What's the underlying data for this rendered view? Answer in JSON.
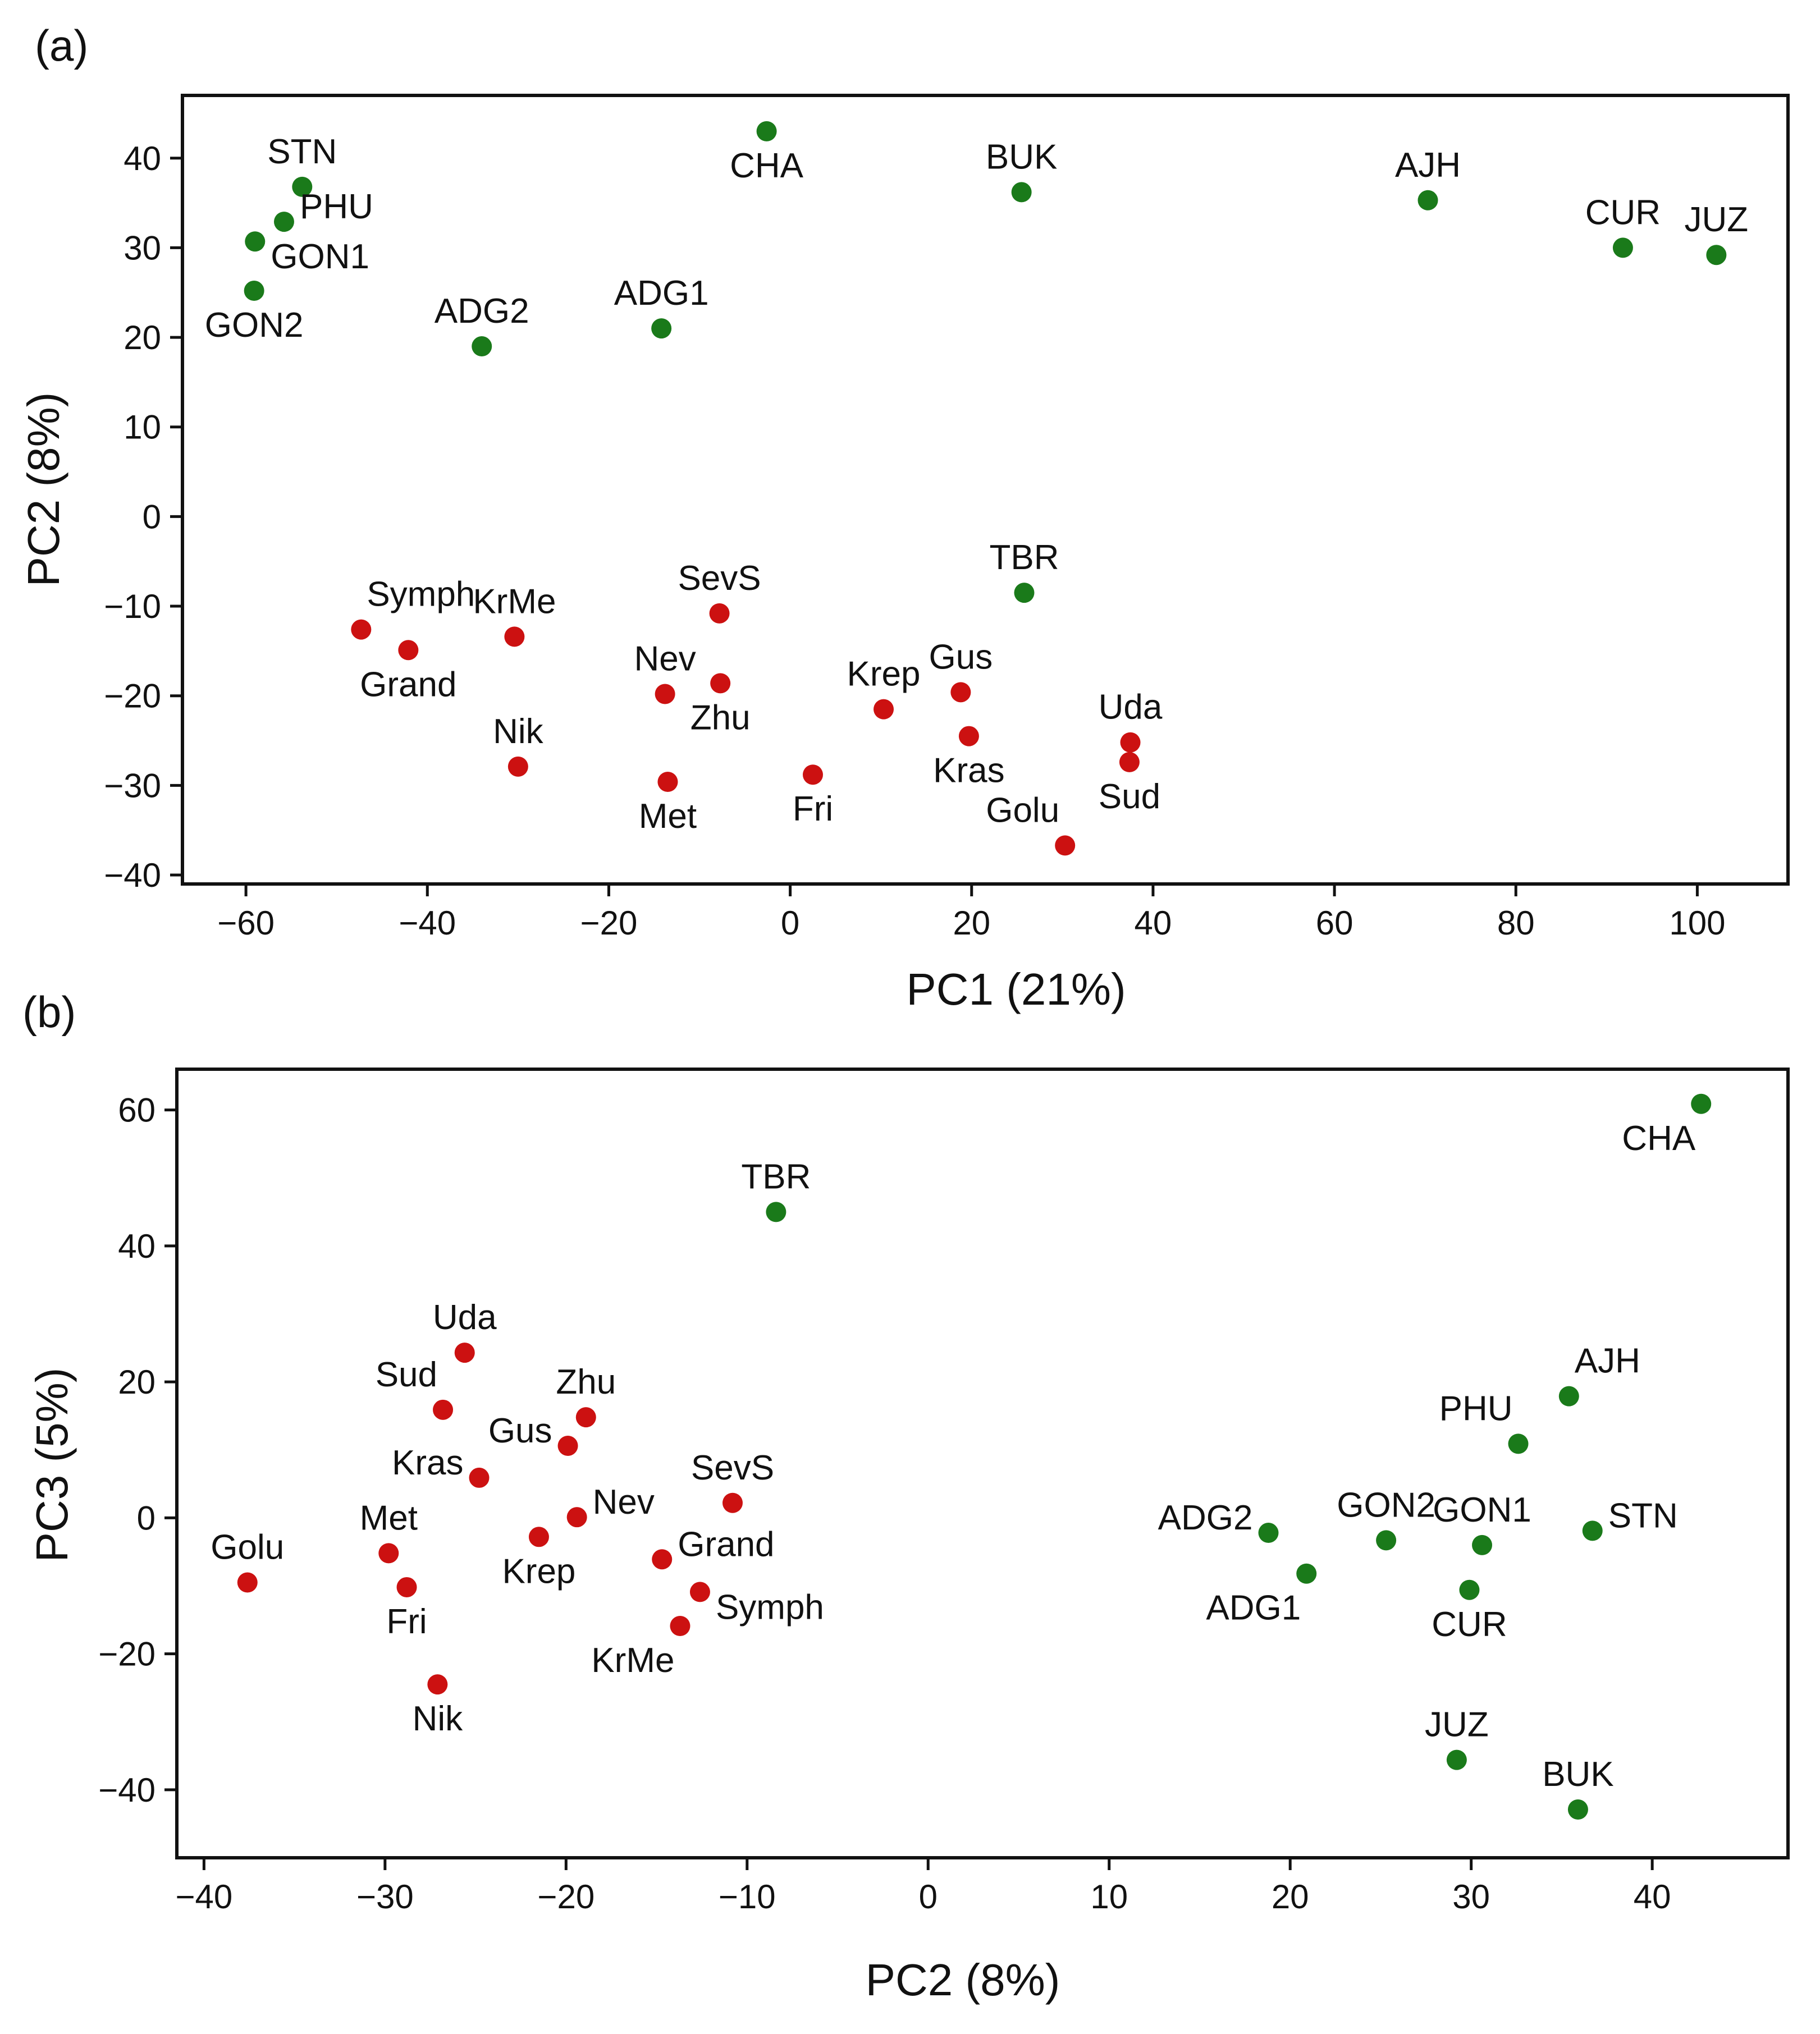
{
  "colors": {
    "group_red": "#cc1111",
    "group_green": "#1a7a1a"
  },
  "chart_data": [
    {
      "type": "scatter",
      "panel_label": "(a)",
      "xlabel": "PC1 (21%)",
      "ylabel": "PC2 (8%)",
      "xlim": [
        -67,
        110
      ],
      "ylim": [
        -41,
        47
      ],
      "xticks": [
        -60,
        -40,
        -20,
        0,
        20,
        40,
        60,
        80,
        100
      ],
      "xtick_labels": [
        "−60",
        "−40",
        "−20",
        "0",
        "20",
        "40",
        "60",
        "80",
        "100"
      ],
      "yticks": [
        -40,
        -30,
        -20,
        -10,
        0,
        10,
        20,
        30,
        40
      ],
      "ytick_labels": [
        "−40",
        "−30",
        "−20",
        "−10",
        "0",
        "10",
        "20",
        "30",
        "40"
      ],
      "grid": false,
      "series": [
        {
          "name": "red",
          "color": "#cc1111",
          "points": [
            {
              "label": "Symph",
              "x": -47.3,
              "y": -12.6,
              "anchor": "above-right"
            },
            {
              "label": "Grand",
              "x": -42.1,
              "y": -14.9,
              "anchor": "below"
            },
            {
              "label": "KrMe",
              "x": -30.4,
              "y": -13.4,
              "anchor": "above"
            },
            {
              "label": "Nik",
              "x": -30.0,
              "y": -27.9,
              "anchor": "above"
            },
            {
              "label": "SevS",
              "x": -7.8,
              "y": -10.8,
              "anchor": "above"
            },
            {
              "label": "Nev",
              "x": -13.8,
              "y": -19.8,
              "anchor": "above"
            },
            {
              "label": "Zhu",
              "x": -7.7,
              "y": -18.6,
              "anchor": "below"
            },
            {
              "label": "Met",
              "x": -13.5,
              "y": -29.6,
              "anchor": "below"
            },
            {
              "label": "Fri",
              "x": 2.5,
              "y": -28.8,
              "anchor": "below"
            },
            {
              "label": "Krep",
              "x": 10.3,
              "y": -21.5,
              "anchor": "above"
            },
            {
              "label": "Gus",
              "x": 18.8,
              "y": -19.6,
              "anchor": "above"
            },
            {
              "label": "Kras",
              "x": 19.7,
              "y": -24.5,
              "anchor": "below"
            },
            {
              "label": "Uda",
              "x": 37.5,
              "y": -25.2,
              "anchor": "above"
            },
            {
              "label": "Sud",
              "x": 37.4,
              "y": -27.4,
              "anchor": "below"
            },
            {
              "label": "Golu",
              "x": 30.3,
              "y": -36.7,
              "anchor": "above-left"
            }
          ]
        },
        {
          "name": "green",
          "color": "#1a7a1a",
          "points": [
            {
              "label": "STN",
              "x": -53.8,
              "y": 36.8,
              "anchor": "above"
            },
            {
              "label": "PHU",
              "x": -55.8,
              "y": 32.9,
              "anchor": "right-up"
            },
            {
              "label": "GON1",
              "x": -59.0,
              "y": 30.7,
              "anchor": "right-down"
            },
            {
              "label": "GON2",
              "x": -59.1,
              "y": 25.2,
              "anchor": "below"
            },
            {
              "label": "ADG2",
              "x": -34.0,
              "y": 19.0,
              "anchor": "above"
            },
            {
              "label": "ADG1",
              "x": -14.2,
              "y": 21.0,
              "anchor": "above"
            },
            {
              "label": "CHA",
              "x": -2.6,
              "y": 43.0,
              "anchor": "below"
            },
            {
              "label": "BUK",
              "x": 25.5,
              "y": 36.2,
              "anchor": "above"
            },
            {
              "label": "AJH",
              "x": 70.3,
              "y": 35.3,
              "anchor": "above"
            },
            {
              "label": "CUR",
              "x": 91.8,
              "y": 30.0,
              "anchor": "above"
            },
            {
              "label": "JUZ",
              "x": 102.1,
              "y": 29.2,
              "anchor": "above"
            },
            {
              "label": "TBR",
              "x": 25.8,
              "y": -8.5,
              "anchor": "above"
            }
          ]
        }
      ]
    },
    {
      "type": "scatter",
      "panel_label": "(b)",
      "xlabel": "PC2 (8%)",
      "ylabel": "PC3 (5%)",
      "xlim": [
        -41.5,
        47.5
      ],
      "ylim": [
        -50,
        66
      ],
      "xticks": [
        -40,
        -30,
        -20,
        -10,
        0,
        10,
        20,
        30,
        40
      ],
      "xtick_labels": [
        "−40",
        "−30",
        "−20",
        "−10",
        "0",
        "10",
        "20",
        "30",
        "40"
      ],
      "yticks": [
        -40,
        -20,
        0,
        20,
        40,
        60
      ],
      "ytick_labels": [
        "−40",
        "−20",
        "0",
        "20",
        "40",
        "60"
      ],
      "grid": false,
      "series": [
        {
          "name": "red",
          "color": "#cc1111",
          "points": [
            {
              "label": "Uda",
              "x": -25.6,
              "y": 24.3,
              "anchor": "above"
            },
            {
              "label": "Sud",
              "x": -26.8,
              "y": 15.9,
              "anchor": "above-left"
            },
            {
              "label": "Zhu",
              "x": -18.9,
              "y": 14.8,
              "anchor": "above"
            },
            {
              "label": "Gus",
              "x": -19.9,
              "y": 10.6,
              "anchor": "left-up"
            },
            {
              "label": "Kras",
              "x": -24.8,
              "y": 5.9,
              "anchor": "left-up"
            },
            {
              "label": "Nev",
              "x": -19.4,
              "y": 0.1,
              "anchor": "right-up"
            },
            {
              "label": "SevS",
              "x": -10.8,
              "y": 2.2,
              "anchor": "above"
            },
            {
              "label": "Krep",
              "x": -21.5,
              "y": -2.8,
              "anchor": "below"
            },
            {
              "label": "Grand",
              "x": -14.7,
              "y": -6.1,
              "anchor": "right-up"
            },
            {
              "label": "Symph",
              "x": -12.6,
              "y": -10.9,
              "anchor": "right-down"
            },
            {
              "label": "KrMe",
              "x": -13.7,
              "y": -15.9,
              "anchor": "below-left"
            },
            {
              "label": "Met",
              "x": -29.8,
              "y": -5.2,
              "anchor": "above"
            },
            {
              "label": "Fri",
              "x": -28.8,
              "y": -10.2,
              "anchor": "below"
            },
            {
              "label": "Nik",
              "x": -27.1,
              "y": -24.5,
              "anchor": "below"
            },
            {
              "label": "Golu",
              "x": -37.6,
              "y": -9.5,
              "anchor": "above"
            }
          ]
        },
        {
          "name": "green",
          "color": "#1a7a1a",
          "points": [
            {
              "label": "TBR",
              "x": -8.4,
              "y": 45.0,
              "anchor": "above"
            },
            {
              "label": "CHA",
              "x": 42.7,
              "y": 60.9,
              "anchor": "below-left"
            },
            {
              "label": "AJH",
              "x": 35.4,
              "y": 17.9,
              "anchor": "above-right"
            },
            {
              "label": "PHU",
              "x": 32.6,
              "y": 10.9,
              "anchor": "above-left"
            },
            {
              "label": "STN",
              "x": 36.7,
              "y": -1.9,
              "anchor": "right-up"
            },
            {
              "label": "GON1",
              "x": 30.6,
              "y": -4.0,
              "anchor": "above"
            },
            {
              "label": "GON2",
              "x": 25.3,
              "y": -3.3,
              "anchor": "above"
            },
            {
              "label": "ADG2",
              "x": 18.8,
              "y": -2.2,
              "anchor": "left-up"
            },
            {
              "label": "ADG1",
              "x": 20.9,
              "y": -8.2,
              "anchor": "below-left"
            },
            {
              "label": "CUR",
              "x": 29.9,
              "y": -10.6,
              "anchor": "below"
            },
            {
              "label": "JUZ",
              "x": 29.2,
              "y": -35.6,
              "anchor": "above"
            },
            {
              "label": "BUK",
              "x": 35.9,
              "y": -42.9,
              "anchor": "above"
            }
          ]
        }
      ]
    }
  ]
}
